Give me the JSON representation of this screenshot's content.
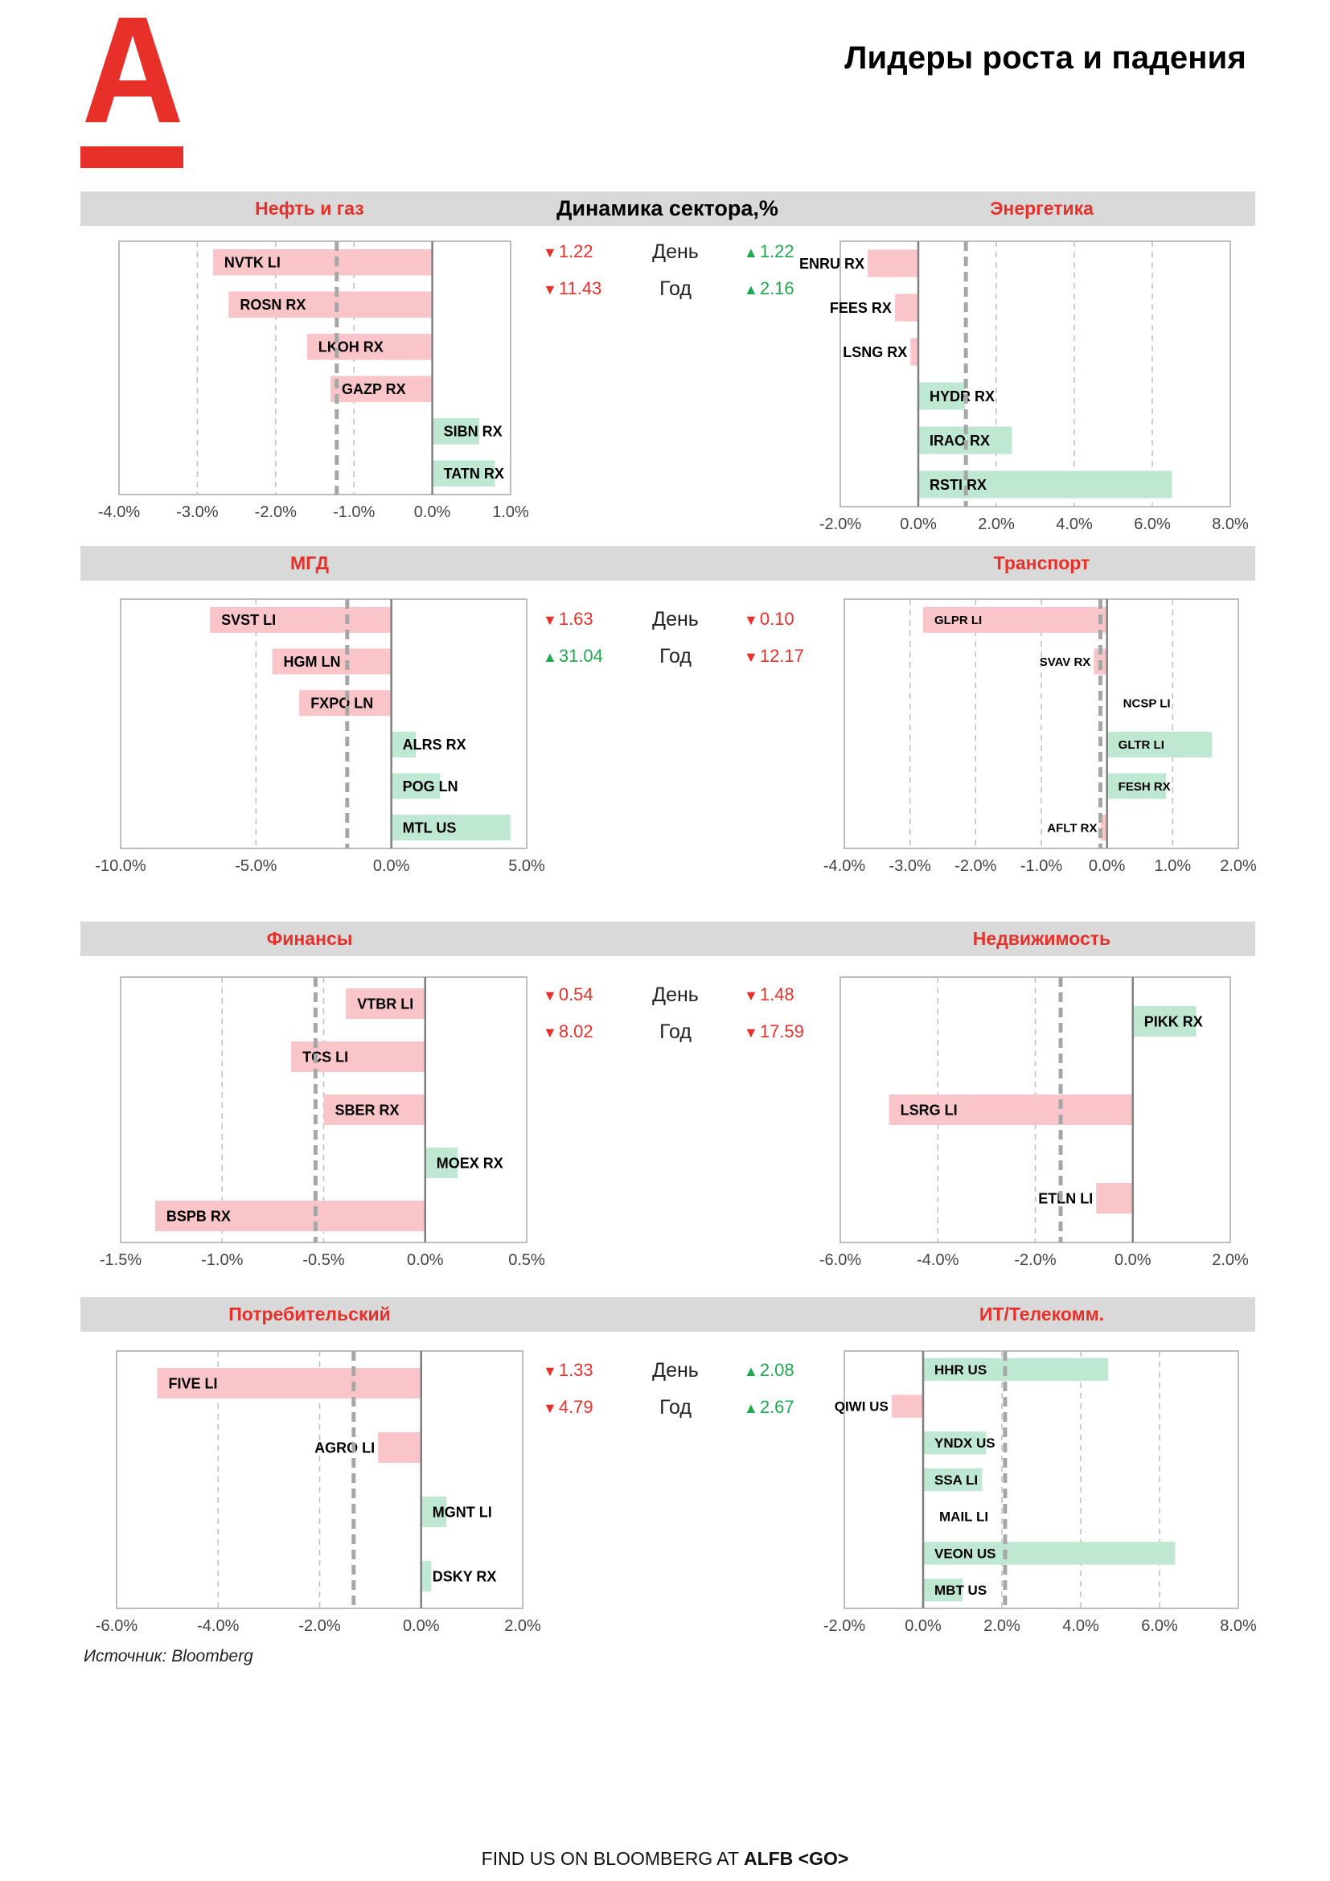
{
  "header": {
    "title": "Лидеры роста и падения",
    "dynamics_title": "Динамика сектора,%",
    "day_label": "День",
    "year_label": "Год"
  },
  "colors": {
    "brand_red": "#e8302a",
    "neg_bar": "#f9c5c8",
    "pos_bar": "#bfe8d2",
    "up_green": "#1fa850",
    "band_gray": "#d9d9d9"
  },
  "sectors": [
    {
      "name": "Нефть и газ",
      "stats": {
        "day": {
          "dir": "down",
          "value": "1.22"
        },
        "year": {
          "dir": "down",
          "value": "11.43"
        }
      }
    },
    {
      "name": "Энергетика",
      "stats": {
        "day": {
          "dir": "up",
          "value": "1.22"
        },
        "year": {
          "dir": "up",
          "value": "2.16"
        }
      }
    },
    {
      "name": "МГД",
      "stats": {
        "day": {
          "dir": "down",
          "value": "1.63"
        },
        "year": {
          "dir": "up",
          "value": "31.04"
        }
      }
    },
    {
      "name": "Транспорт",
      "stats": {
        "day": {
          "dir": "down",
          "value": "0.10"
        },
        "year": {
          "dir": "down",
          "value": "12.17"
        }
      }
    },
    {
      "name": "Финансы",
      "stats": {
        "day": {
          "dir": "down",
          "value": "0.54"
        },
        "year": {
          "dir": "down",
          "value": "8.02"
        }
      }
    },
    {
      "name": "Недвижимость",
      "stats": {
        "day": {
          "dir": "down",
          "value": "1.48"
        },
        "year": {
          "dir": "down",
          "value": "17.59"
        }
      }
    },
    {
      "name": "Потребительский",
      "stats": {
        "day": {
          "dir": "down",
          "value": "1.33"
        },
        "year": {
          "dir": "down",
          "value": "4.79"
        }
      }
    },
    {
      "name": "ИТ/Телекомм.",
      "stats": {
        "day": {
          "dir": "up",
          "value": "2.08"
        },
        "year": {
          "dir": "up",
          "value": "2.67"
        }
      }
    }
  ],
  "chart_data": [
    {
      "type": "bar",
      "orientation": "horizontal",
      "sector": "Нефть и газ",
      "categories": [
        "NVTK LI",
        "ROSN RX",
        "LKOH RX",
        "GAZP RX",
        "SIBN RX",
        "TATN RX"
      ],
      "values": [
        -2.8,
        -2.6,
        -1.6,
        -1.3,
        0.6,
        0.8
      ],
      "xlim": [
        -4.0,
        1.0
      ],
      "ticks": [
        "-4.0%",
        "-3.0%",
        "-2.0%",
        "-1.0%",
        "0.0%",
        "1.0%"
      ],
      "tick_values": [
        -4,
        -3,
        -2,
        -1,
        0,
        1
      ],
      "reference_line": -1.22,
      "label_size": 18
    },
    {
      "type": "bar",
      "orientation": "horizontal",
      "sector": "Энергетика",
      "categories": [
        "ENRU RX",
        "FEES RX",
        "LSNG RX",
        "HYDR RX",
        "IRAO RX",
        "RSTI RX"
      ],
      "values": [
        -1.3,
        -0.6,
        -0.2,
        1.2,
        2.4,
        6.5
      ],
      "xlim": [
        -2.0,
        8.0
      ],
      "ticks": [
        "-2.0%",
        "0.0%",
        "2.0%",
        "4.0%",
        "6.0%",
        "8.0%"
      ],
      "tick_values": [
        -2,
        0,
        2,
        4,
        6,
        8
      ],
      "reference_line": 1.22,
      "label_size": 18
    },
    {
      "type": "bar",
      "orientation": "horizontal",
      "sector": "МГД",
      "categories": [
        "SVST LI",
        "HGM LN",
        "FXPO LN",
        "ALRS RX",
        "POG LN",
        "MTL US"
      ],
      "values": [
        -6.7,
        -4.4,
        -3.4,
        0.9,
        1.8,
        4.4
      ],
      "xlim": [
        -10.0,
        5.0
      ],
      "ticks": [
        "-10.0%",
        "-5.0%",
        "0.0%",
        "5.0%"
      ],
      "tick_values": [
        -10,
        -5,
        0,
        5
      ],
      "reference_line": -1.63,
      "label_size": 18
    },
    {
      "type": "bar",
      "orientation": "horizontal",
      "sector": "Транспорт",
      "categories": [
        "GLPR LI",
        "SVAV RX",
        "NCSP LI",
        "GLTR LI",
        "FESH RX",
        "AFLT RX"
      ],
      "values": [
        -2.8,
        -0.2,
        0.0,
        1.6,
        0.9,
        -0.1
      ],
      "xlim": [
        -4.0,
        2.0
      ],
      "ticks": [
        "-4.0%",
        "-3.0%",
        "-2.0%",
        "-1.0%",
        "0.0%",
        "1.0%",
        "2.0%"
      ],
      "tick_values": [
        -4,
        -3,
        -2,
        -1,
        0,
        1,
        2
      ],
      "reference_line": -0.1,
      "label_size": 15
    },
    {
      "type": "bar",
      "orientation": "horizontal",
      "sector": "Финансы",
      "categories": [
        "VTBR LI",
        "TCS LI",
        "SBER RX",
        "MOEX RX",
        "BSPB RX"
      ],
      "values": [
        -0.39,
        -0.66,
        -0.5,
        0.16,
        -1.33
      ],
      "xlim": [
        -1.5,
        0.5
      ],
      "ticks": [
        "-1.5%",
        "-1.0%",
        "-0.5%",
        "0.0%",
        "0.5%"
      ],
      "tick_values": [
        -1.5,
        -1.0,
        -0.5,
        0.0,
        0.5
      ],
      "reference_line": -0.54,
      "label_size": 18
    },
    {
      "type": "bar",
      "orientation": "horizontal",
      "sector": "Недвижимость",
      "categories": [
        "PIKK RX",
        "LSRG LI",
        "ETLN LI"
      ],
      "values": [
        1.3,
        -5.0,
        -0.75
      ],
      "xlim": [
        -6.0,
        2.0
      ],
      "ticks": [
        "-6.0%",
        "-4.0%",
        "-2.0%",
        "0.0%",
        "2.0%"
      ],
      "tick_values": [
        -6,
        -4,
        -2,
        0,
        2
      ],
      "reference_line": -1.48,
      "label_size": 18
    },
    {
      "type": "bar",
      "orientation": "horizontal",
      "sector": "Потребительский",
      "categories": [
        "FIVE LI",
        "AGRO LI",
        "MGNT LI",
        "DSKY RX"
      ],
      "values": [
        -5.2,
        -0.85,
        0.5,
        0.2
      ],
      "xlim": [
        -6.0,
        2.0
      ],
      "ticks": [
        "-6.0%",
        "-4.0%",
        "-2.0%",
        "0.0%",
        "2.0%"
      ],
      "tick_values": [
        -6,
        -4,
        -2,
        0,
        2
      ],
      "reference_line": -1.33,
      "label_size": 18
    },
    {
      "type": "bar",
      "orientation": "horizontal",
      "sector": "ИТ/Телекомм.",
      "categories": [
        "HHR US",
        "QIWI US",
        "YNDX US",
        "SSA LI",
        "MAIL LI",
        "VEON US",
        "MBT US"
      ],
      "values": [
        4.7,
        -0.8,
        1.6,
        1.5,
        0.0,
        6.4,
        1.0
      ],
      "xlim": [
        -2.0,
        8.0
      ],
      "ticks": [
        "-2.0%",
        "0.0%",
        "2.0%",
        "4.0%",
        "6.0%",
        "8.0%"
      ],
      "tick_values": [
        -2,
        0,
        2,
        4,
        6,
        8
      ],
      "reference_line": 2.08,
      "label_size": 17
    }
  ],
  "footer": {
    "source": "Источник: Bloomberg",
    "bloomberg_prefix": "FIND US ON BLOOMBERG AT ",
    "bloomberg_code": "ALFB <GO>"
  }
}
